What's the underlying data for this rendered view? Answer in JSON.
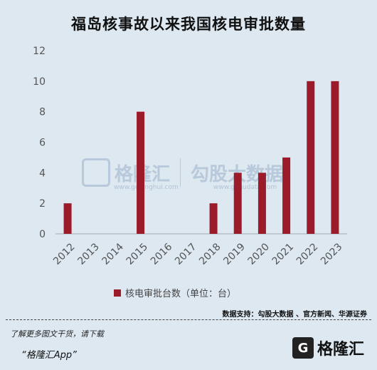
{
  "title": "福岛核事故以来我国核电审批数量",
  "chart_data": {
    "type": "bar",
    "categories": [
      "2012",
      "2013",
      "2014",
      "2015",
      "2016",
      "2017",
      "2018",
      "2019",
      "2020",
      "2021",
      "2022",
      "2023"
    ],
    "series": [
      {
        "name": "核电审批台数（单位：台）",
        "values": [
          2,
          0,
          0,
          8,
          0,
          0,
          2,
          4,
          4,
          5,
          10,
          10
        ]
      }
    ],
    "ylim": [
      0,
      12
    ],
    "yticks": [
      "0",
      "2",
      "4",
      "6",
      "8",
      "10",
      "12"
    ],
    "grid": false,
    "legend_position": "bottom",
    "bar_color": "#9b1b2a"
  },
  "source": "数据支持：勾股大数据 、官方新闻、华源证券",
  "watermark": {
    "brand": "格隆汇",
    "brand_url": "www.gelonghui.com",
    "data_brand": "勾股大数据",
    "data_url": "www.gogudata.com"
  },
  "footer": {
    "note": "了解更多图文干货，请下载",
    "app": "“格隆汇App”",
    "logo_text": "格隆汇",
    "logo_mark": "G"
  }
}
